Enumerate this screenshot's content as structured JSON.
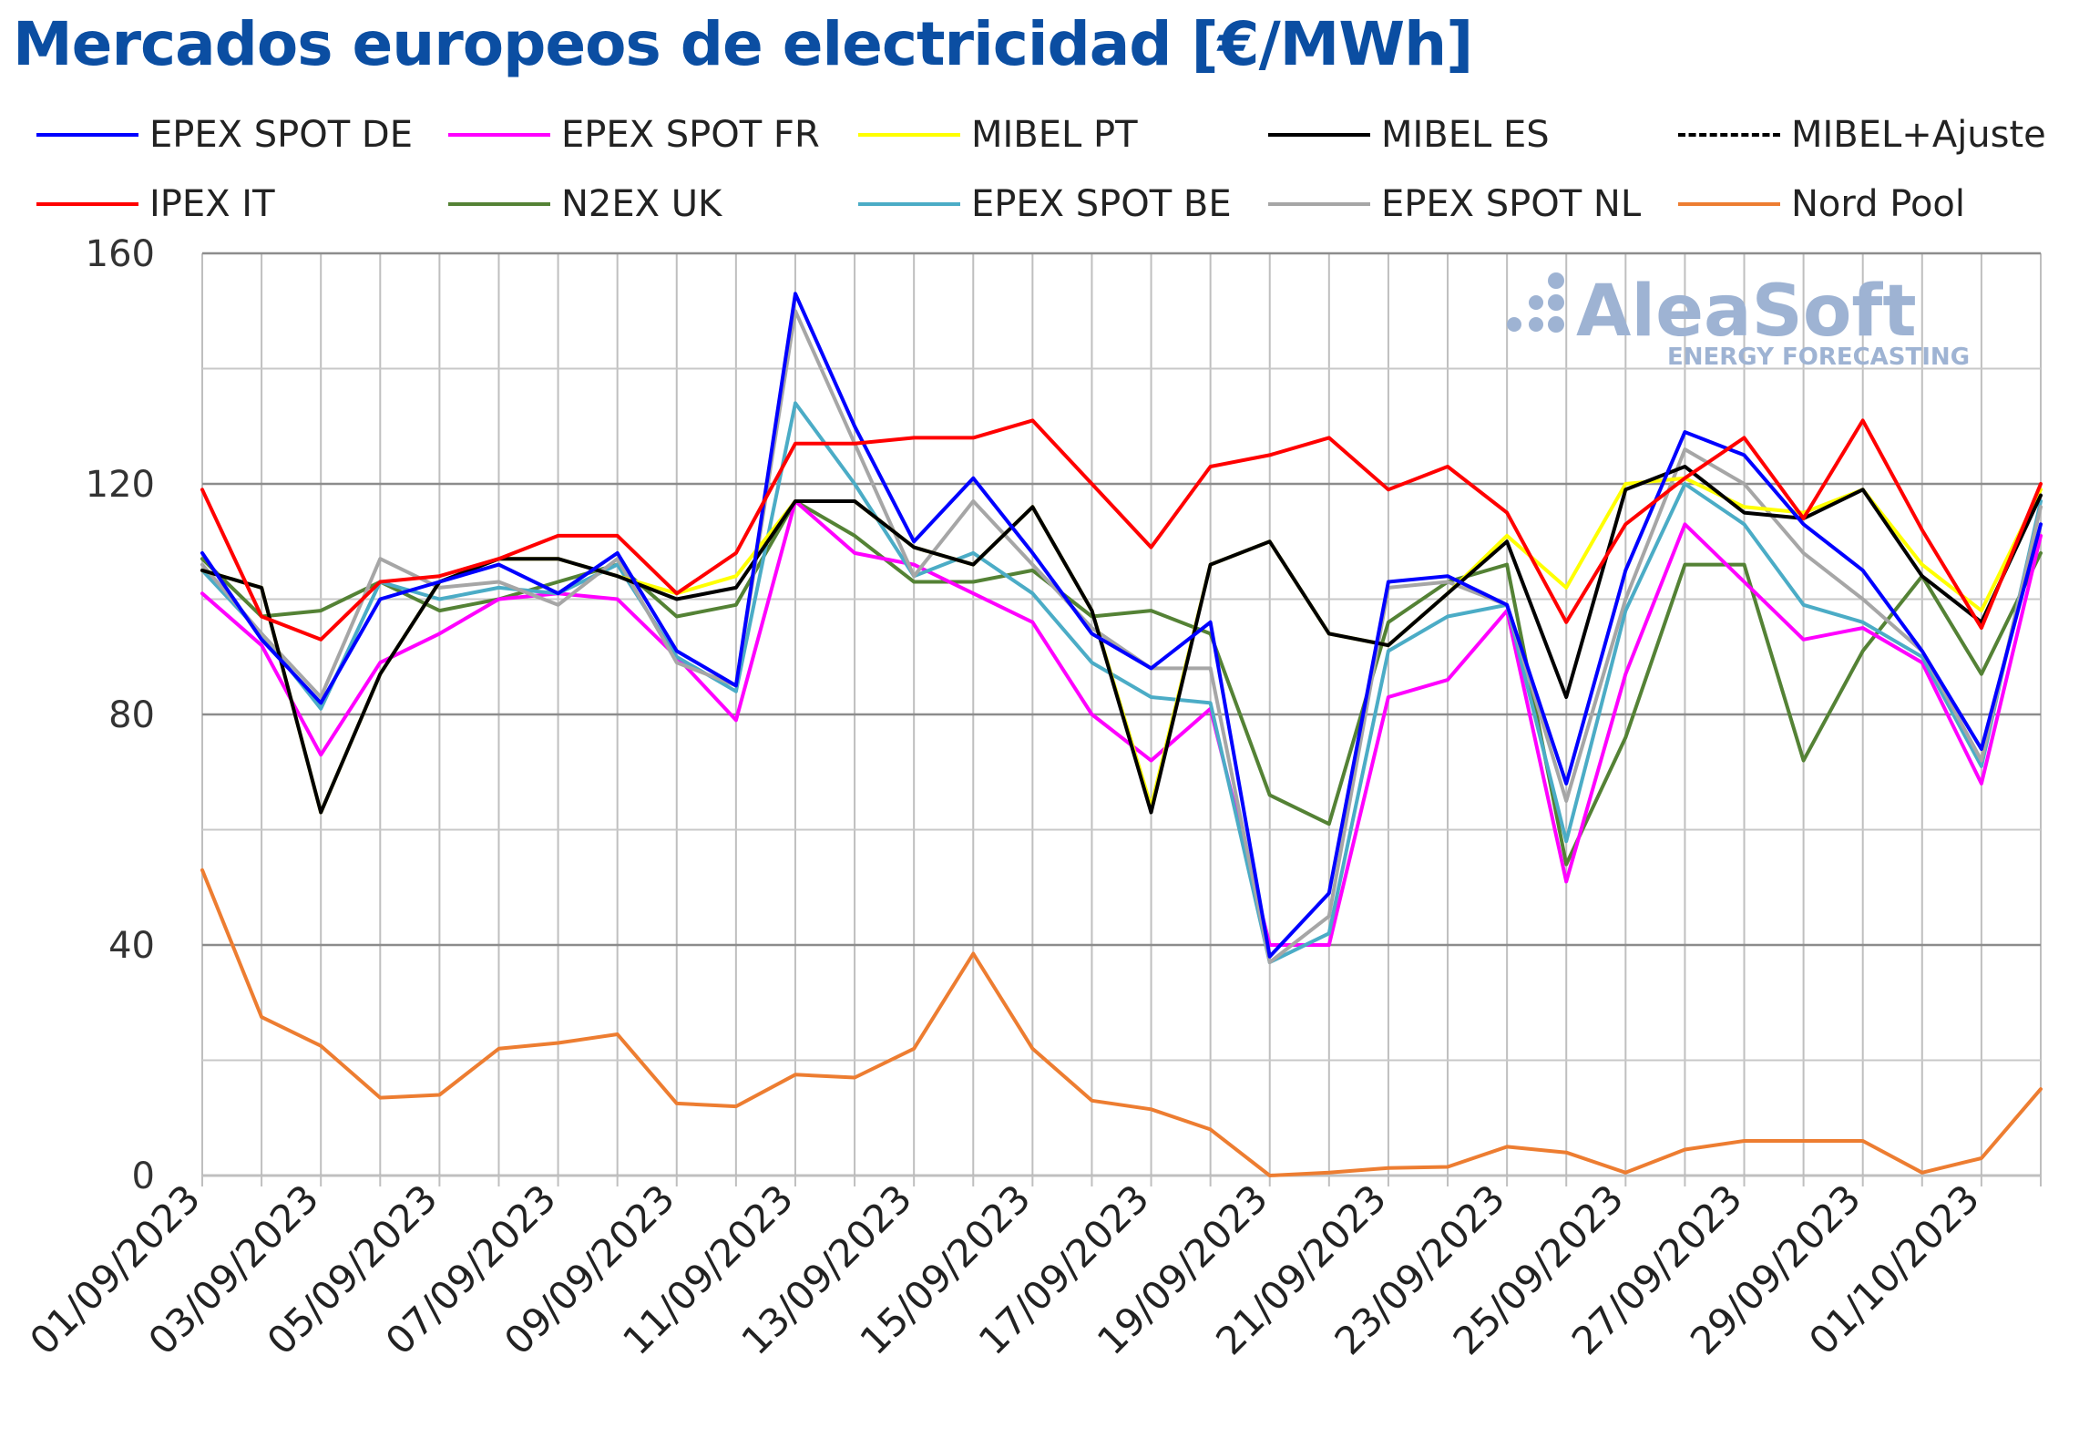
{
  "chart_data": {
    "type": "line",
    "title": "Mercados europeos de electricidad [€/MWh]",
    "xlabel": "",
    "ylabel": "",
    "ylim": [
      0,
      160
    ],
    "yticks": [
      0,
      40,
      80,
      120,
      160
    ],
    "grid": true,
    "legend_position": "top",
    "x": [
      "01/09/2023",
      "02/09/2023",
      "03/09/2023",
      "04/09/2023",
      "05/09/2023",
      "06/09/2023",
      "07/09/2023",
      "08/09/2023",
      "09/09/2023",
      "10/09/2023",
      "11/09/2023",
      "12/09/2023",
      "13/09/2023",
      "14/09/2023",
      "15/09/2023",
      "16/09/2023",
      "17/09/2023",
      "18/09/2023",
      "19/09/2023",
      "20/09/2023",
      "21/09/2023",
      "22/09/2023",
      "23/09/2023",
      "24/09/2023",
      "25/09/2023",
      "26/09/2023",
      "27/09/2023",
      "28/09/2023",
      "29/09/2023",
      "30/09/2023",
      "01/10/2023",
      "02/10/2023"
    ],
    "x_tick_labels": [
      "01/09/2023",
      "03/09/2023",
      "05/09/2023",
      "07/09/2023",
      "09/09/2023",
      "11/09/2023",
      "13/09/2023",
      "15/09/2023",
      "17/09/2023",
      "19/09/2023",
      "21/09/2023",
      "23/09/2023",
      "25/09/2023",
      "27/09/2023",
      "29/09/2023",
      "01/10/2023"
    ],
    "series": [
      {
        "name": "EPEX SPOT DE",
        "color": "#0000ff",
        "dash": false,
        "values": [
          108,
          93,
          82,
          100,
          103,
          106,
          101,
          108,
          91,
          85,
          153,
          130,
          110,
          121,
          108,
          94,
          88,
          96,
          38,
          49,
          103,
          104,
          99,
          68,
          105,
          129,
          125,
          113,
          105,
          91,
          74,
          113
        ]
      },
      {
        "name": "EPEX SPOT FR",
        "color": "#ff00ff",
        "dash": false,
        "values": [
          101,
          92,
          73,
          89,
          94,
          100,
          101,
          100,
          90,
          79,
          117,
          108,
          106,
          101,
          96,
          80,
          72,
          81,
          40,
          40,
          83,
          86,
          98,
          51,
          87,
          113,
          103,
          93,
          95,
          89,
          68,
          111
        ]
      },
      {
        "name": "MIBEL PT",
        "color": "#ffff00",
        "dash": false,
        "values": [
          105,
          102,
          63,
          87,
          103,
          107,
          107,
          104,
          101,
          104,
          117,
          117,
          109,
          106,
          116,
          98,
          64,
          106,
          110,
          94,
          92,
          101,
          111,
          102,
          120,
          121,
          116,
          115,
          119,
          106,
          98,
          119
        ]
      },
      {
        "name": "MIBEL ES",
        "color": "#000000",
        "dash": false,
        "values": [
          105,
          102,
          63,
          87,
          103,
          107,
          107,
          104,
          100,
          102,
          117,
          117,
          109,
          106,
          116,
          98,
          63,
          106,
          110,
          94,
          92,
          101,
          110,
          83,
          119,
          123,
          115,
          114,
          119,
          104,
          96,
          118
        ]
      },
      {
        "name": "MIBEL+Ajuste",
        "color": "#000000",
        "dash": true,
        "values": [
          105,
          102,
          63,
          87,
          103,
          107,
          107,
          104,
          100,
          102,
          117,
          117,
          109,
          106,
          116,
          98,
          63,
          106,
          110,
          94,
          92,
          101,
          110,
          83,
          119,
          123,
          115,
          114,
          119,
          104,
          96,
          118
        ]
      },
      {
        "name": "IPEX IT",
        "color": "#ff0000",
        "dash": false,
        "values": [
          119,
          97,
          93,
          103,
          104,
          107,
          111,
          111,
          101,
          108,
          127,
          127,
          128,
          128,
          131,
          120,
          109,
          123,
          125,
          128,
          119,
          123,
          115,
          96,
          113,
          121,
          128,
          114,
          131,
          112,
          95,
          120
        ]
      },
      {
        "name": "N2EX UK",
        "color": "#548235",
        "dash": false,
        "values": [
          107,
          97,
          98,
          103,
          98,
          100,
          103,
          106,
          97,
          99,
          117,
          111,
          103,
          103,
          105,
          97,
          98,
          94,
          66,
          61,
          96,
          103,
          106,
          54,
          76,
          106,
          106,
          72,
          91,
          104,
          87,
          108
        ]
      },
      {
        "name": "EPEX SPOT BE",
        "color": "#4bacc6",
        "dash": false,
        "values": [
          105,
          94,
          81,
          103,
          100,
          102,
          101,
          106,
          90,
          84,
          134,
          120,
          104,
          108,
          101,
          89,
          83,
          82,
          37,
          42,
          91,
          97,
          99,
          58,
          98,
          120,
          113,
          99,
          96,
          90,
          71,
          117
        ]
      },
      {
        "name": "EPEX SPOT NL",
        "color": "#a6a6a6",
        "dash": false,
        "values": [
          106,
          94,
          83,
          107,
          102,
          103,
          99,
          107,
          89,
          85,
          150,
          127,
          104,
          117,
          106,
          95,
          88,
          88,
          37,
          45,
          102,
          103,
          99,
          65,
          100,
          126,
          120,
          108,
          100,
          91,
          72,
          116
        ]
      },
      {
        "name": "Nord Pool",
        "color": "#ed7d31",
        "dash": false,
        "values": [
          53,
          27.5,
          22.5,
          13.5,
          14,
          22,
          23,
          24.5,
          12.5,
          12,
          17.5,
          17,
          22,
          38.5,
          22,
          13,
          11.5,
          8,
          0,
          0.5,
          1.3,
          1.5,
          5,
          4,
          0.5,
          4.5,
          6,
          6,
          6,
          0.5,
          3,
          15
        ]
      }
    ]
  },
  "watermark": {
    "brand": "AleaSoft",
    "tagline": "ENERGY FORECASTING",
    "color": "#9eb3d3"
  }
}
